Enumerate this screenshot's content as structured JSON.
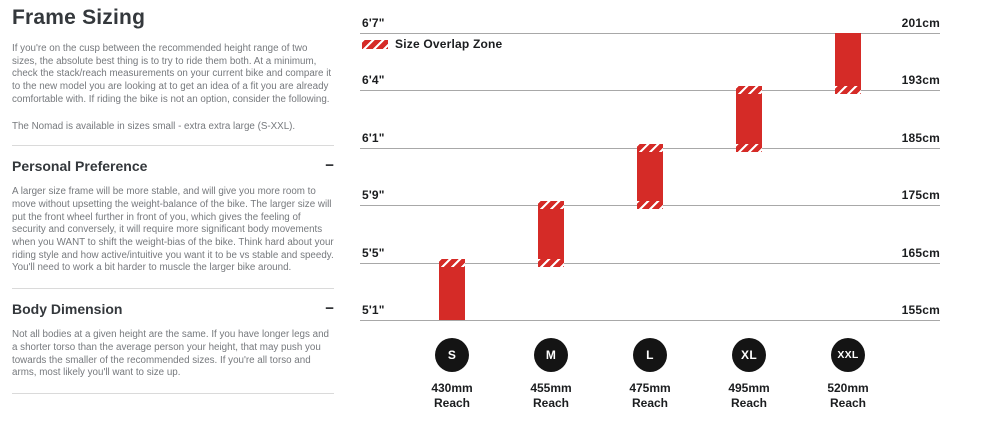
{
  "page": {
    "title": "Frame Sizing",
    "intro": [
      "If you're on the cusp between the recommended height range of two sizes, the absolute best thing is to try to ride them both. At a minimum, check the stack/reach measurements on your current bike and compare it to the new model you are looking at to get an idea of a fit you are already comfortable with. If riding the bike is not an option, consider the following.",
      "The Nomad is available in sizes small - extra extra large (S-XXL)."
    ],
    "sections": [
      {
        "heading": "Personal Preference",
        "collapse_label": "−",
        "body": "A larger size frame will be more stable, and will give you more room to move without upsetting the weight-balance of the bike. The larger size will put the front wheel further in front of you, which gives the feeling of security and conversely, it will require more significant body movements when you WANT to shift the weight-bias of the bike. Think hard about your riding style and how active/intuitive you want it to be vs stable and speedy. You'll need to work a bit harder to muscle the larger bike around."
      },
      {
        "heading": "Body Dimension",
        "collapse_label": "−",
        "body": "Not all bodies at a given height are the same. If you have longer legs and a shorter torso than the average person your height, that may push you towards the smaller of the recommended sizes. If you're all torso and arms, most likely you'll want to size up."
      }
    ]
  },
  "chart_data": {
    "type": "bar",
    "orientation": "vertical-range",
    "title": "",
    "grid": true,
    "legend": {
      "swatch": "red-hatch",
      "label": "Size Overlap Zone",
      "position": "top-left"
    },
    "y_gridlines": [
      {
        "left": "6'7\"",
        "right": "201cm",
        "cm": 201
      },
      {
        "left": "6'4\"",
        "right": "193cm",
        "cm": 193
      },
      {
        "left": "6'1\"",
        "right": "185cm",
        "cm": 185
      },
      {
        "left": "5'9\"",
        "right": "175cm",
        "cm": 175
      },
      {
        "left": "5'5\"",
        "right": "165cm",
        "cm": 165
      },
      {
        "left": "5'1\"",
        "right": "155cm",
        "cm": 155
      }
    ],
    "bars": [
      {
        "size": "S",
        "reach_value": "430mm",
        "reach_label": "Reach",
        "from_line": 5,
        "to_line": 4,
        "overlap_top": true,
        "overlap_bottom": false,
        "range_cm": [
          155,
          165
        ],
        "range_height": [
          "5'1\"",
          "5'5\""
        ]
      },
      {
        "size": "M",
        "reach_value": "455mm",
        "reach_label": "Reach",
        "from_line": 4,
        "to_line": 3,
        "overlap_top": true,
        "overlap_bottom": true,
        "range_cm": [
          165,
          175
        ],
        "range_height": [
          "5'5\"",
          "5'9\""
        ]
      },
      {
        "size": "L",
        "reach_value": "475mm",
        "reach_label": "Reach",
        "from_line": 3,
        "to_line": 2,
        "overlap_top": true,
        "overlap_bottom": true,
        "range_cm": [
          175,
          185
        ],
        "range_height": [
          "5'9\"",
          "6'1\""
        ]
      },
      {
        "size": "XL",
        "reach_value": "495mm",
        "reach_label": "Reach",
        "from_line": 2,
        "to_line": 1,
        "overlap_top": true,
        "overlap_bottom": true,
        "range_cm": [
          185,
          193
        ],
        "range_height": [
          "6'1\"",
          "6'4\""
        ]
      },
      {
        "size": "XXL",
        "reach_value": "520mm",
        "reach_label": "Reach",
        "from_line": 1,
        "to_line": 0,
        "overlap_top": false,
        "overlap_bottom": true,
        "range_cm": [
          193,
          201
        ],
        "range_height": [
          "6'4\"",
          "6'7\""
        ]
      }
    ],
    "colors": {
      "bar_red": "#d52b27",
      "gridline": "#a8a8a8",
      "circle_black": "#141414",
      "axis_text": "#1b1d1f"
    }
  }
}
